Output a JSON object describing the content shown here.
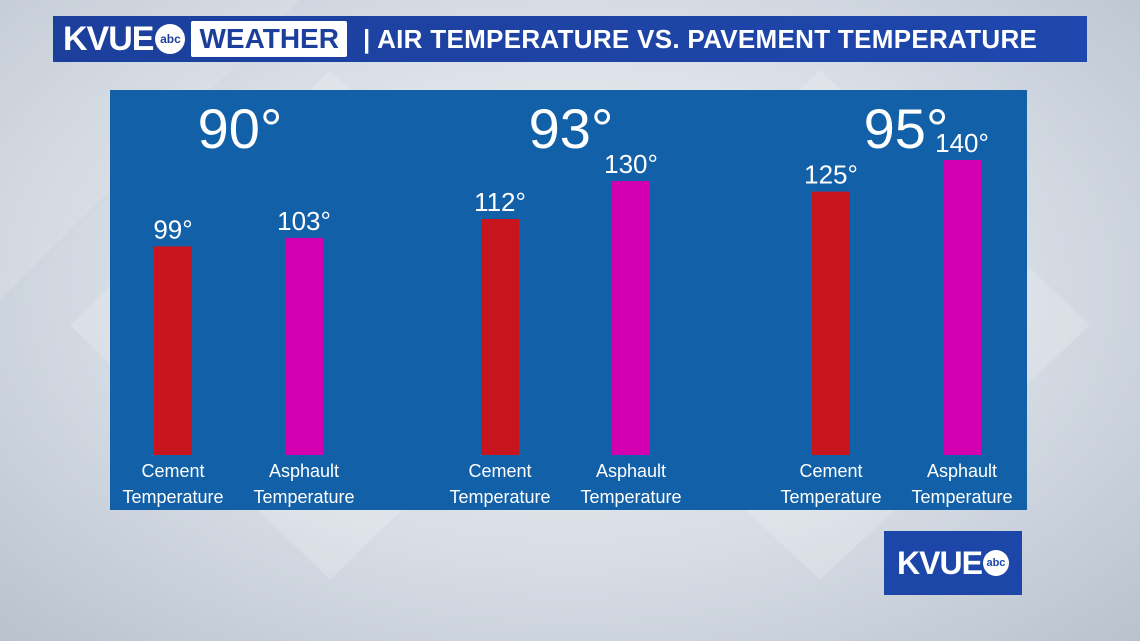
{
  "header": {
    "brand": "KVUE",
    "network": "abc",
    "section": "WEATHER",
    "title": "| AIR TEMPERATURE VS. PAVEMENT TEMPERATURE"
  },
  "colors": {
    "header_bg": "#1c3f9c",
    "panel_bg": "#1160a8",
    "cement": "#c8141c",
    "asphalt": "#d300b2"
  },
  "corner_logo": {
    "brand": "KVUE",
    "network": "abc"
  },
  "chart_data": {
    "type": "bar",
    "title": "AIR TEMPERATURE VS. PAVEMENT TEMPERATURE",
    "ylim": [
      0,
      140
    ],
    "grid": false,
    "groups": [
      {
        "air_label": "90°",
        "bars": [
          {
            "line1": "Cement",
            "line2": "Temperature",
            "value": 99,
            "label": "99°",
            "kind": "cement"
          },
          {
            "line1": "Asphault",
            "line2": "Temperature",
            "value": 103,
            "label": "103°",
            "kind": "asphalt"
          }
        ]
      },
      {
        "air_label": "93°",
        "bars": [
          {
            "line1": "Cement",
            "line2": "Temperature",
            "value": 112,
            "label": "112°",
            "kind": "cement"
          },
          {
            "line1": "Asphault",
            "line2": "Temperature",
            "value": 130,
            "label": "130°",
            "kind": "asphalt"
          }
        ]
      },
      {
        "air_label": "95°",
        "bars": [
          {
            "line1": "Cement",
            "line2": "Temperature",
            "value": 125,
            "label": "125°",
            "kind": "cement"
          },
          {
            "line1": "Asphault",
            "line2": "Temperature",
            "value": 140,
            "label": "140°",
            "kind": "asphalt"
          }
        ]
      }
    ]
  }
}
